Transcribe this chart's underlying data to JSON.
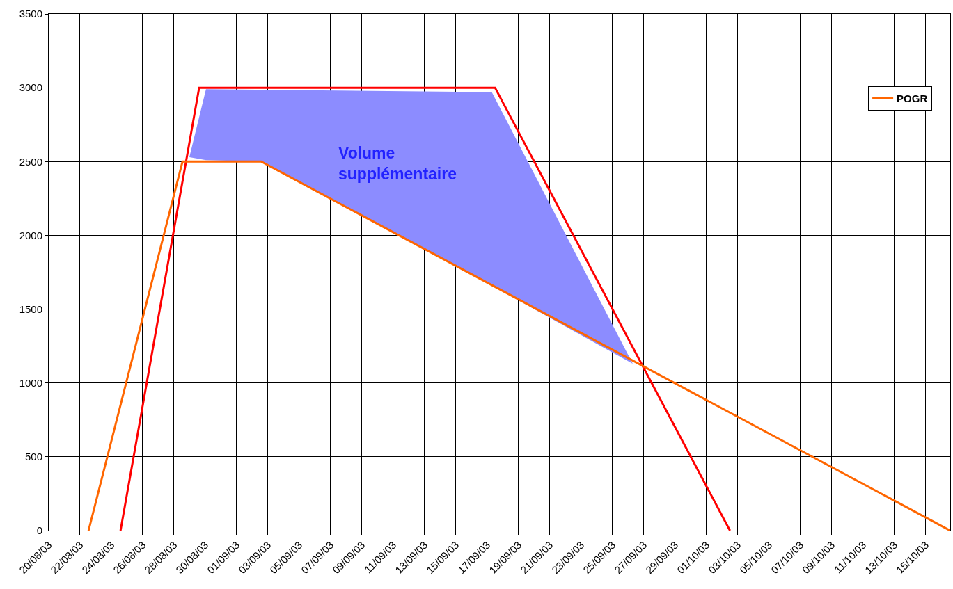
{
  "chart_data": {
    "type": "line",
    "xlim": [
      "--08-20",
      "--10-16T13:30"
    ],
    "xticks": [
      {
        "value": "--08-20",
        "label": "20/08/03"
      },
      {
        "value": "--08-22",
        "label": "22/08/03"
      },
      {
        "value": "--08-24",
        "label": "24/08/03"
      },
      {
        "value": "--08-26",
        "label": "26/08/03"
      },
      {
        "value": "--08-28",
        "label": "28/08/03"
      },
      {
        "value": "--08-30",
        "label": "30/08/03"
      },
      {
        "value": "--09-01",
        "label": "01/09/03"
      },
      {
        "value": "--09-03",
        "label": "03/09/03"
      },
      {
        "value": "--09-05",
        "label": "05/09/03"
      },
      {
        "value": "--09-07",
        "label": "07/09/03"
      },
      {
        "value": "--09-09",
        "label": "09/09/03"
      },
      {
        "value": "--09-11",
        "label": "11/09/03"
      },
      {
        "value": "--09-13",
        "label": "13/09/03"
      },
      {
        "value": "--09-15",
        "label": "15/09/03"
      },
      {
        "value": "--09-17",
        "label": "17/09/03"
      },
      {
        "value": "--09-19",
        "label": "19/09/03"
      },
      {
        "value": "--09-21",
        "label": "21/09/03"
      },
      {
        "value": "--09-23",
        "label": "23/09/03"
      },
      {
        "value": "--09-25",
        "label": "25/09/03"
      },
      {
        "value": "--09-27",
        "label": "27/09/03"
      },
      {
        "value": "--09-29",
        "label": "29/09/03"
      },
      {
        "value": "--10-01",
        "label": "01/10/03"
      },
      {
        "value": "--10-03",
        "label": "03/10/03"
      },
      {
        "value": "--10-05",
        "label": "05/10/03"
      },
      {
        "value": "--10-07",
        "label": "07/10/03"
      },
      {
        "value": "--10-09",
        "label": "09/10/03"
      },
      {
        "value": "--10-11",
        "label": "11/10/03"
      },
      {
        "value": "--10-13",
        "label": "13/10/03"
      },
      {
        "value": "--10-15",
        "label": "15/10/03"
      }
    ],
    "ylim": [
      0,
      3500
    ],
    "yticks": [
      0,
      500,
      1000,
      1500,
      2000,
      2500,
      3000,
      3500
    ],
    "grid": true,
    "legend": "top right",
    "marker": "none",
    "line_style": "solid",
    "series": [
      {
        "type": "area",
        "color": "#8c8cff",
        "x": [
          "--08-28T23:30",
          "--08-30T01:00",
          "--09-17T07:00",
          "--09-26T07:00",
          "--09-17T07:00",
          "--09-02T13:30",
          "--08-30T01:00"
        ],
        "values": [
          2530,
          2990,
          2970,
          1130,
          1660,
          2500,
          2510
        ]
      },
      {
        "color": "#ff0000",
        "x": [
          "--08-24T14:00",
          "--08-29T14:30",
          "--09-17T12:00",
          "--10-02T12:00"
        ],
        "values": [
          0,
          3000,
          3000,
          0
        ]
      },
      {
        "name": "POGR",
        "color": "#ff6600",
        "x": [
          "--08-22T13:00",
          "--08-28T13:00",
          "--09-02T13:30",
          "--10-16T13:30"
        ],
        "values": [
          0,
          2500,
          2500,
          0
        ]
      }
    ],
    "annotations": [
      "Volume supplémentaire"
    ]
  }
}
